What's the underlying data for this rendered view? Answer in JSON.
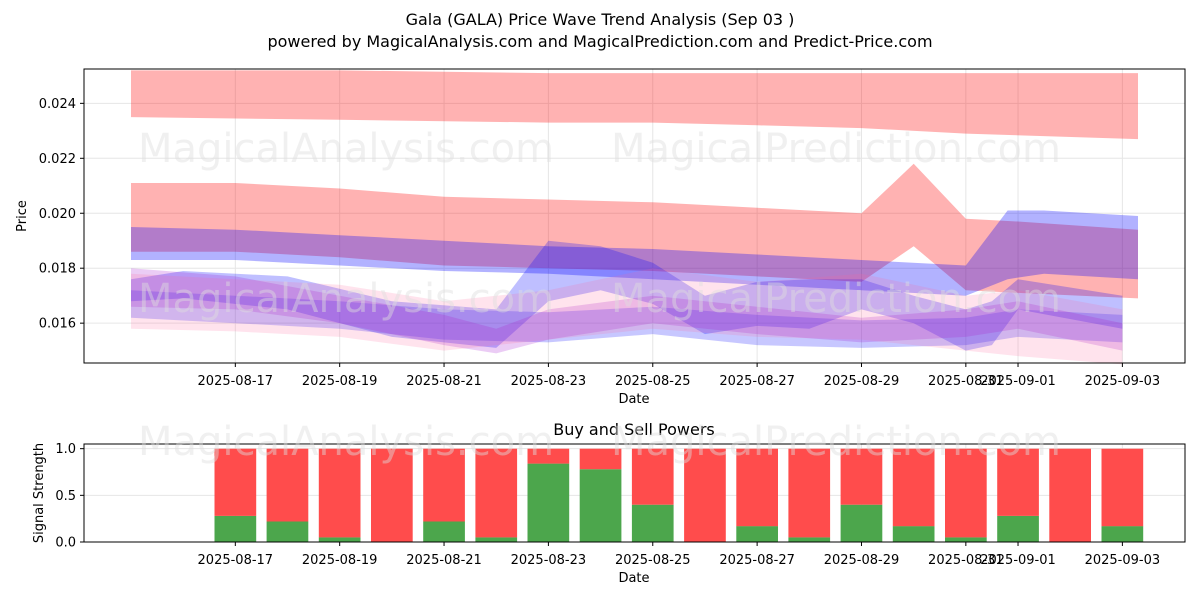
{
  "title": "Gala (GALA) Price Wave Trend Analysis (Sep 03 )",
  "subtitle": "powered by MagicalAnalysis.com and MagicalPrediction.com and Predict-Price.com",
  "watermarks": [
    "MagicalAnalysis.com",
    "MagicalPrediction.com"
  ],
  "chart_data": [
    {
      "type": "area",
      "xlabel": "Date",
      "ylabel": "Price",
      "x_ticks": [
        "2025-08-17",
        "2025-08-19",
        "2025-08-21",
        "2025-08-23",
        "2025-08-25",
        "2025-08-27",
        "2025-08-29",
        "2025-08-31",
        "2025-09-01",
        "2025-09-03"
      ],
      "x_tick_days": [
        2,
        4,
        6,
        8,
        10,
        12,
        14,
        16,
        17,
        19
      ],
      "y_ticks": [
        0.016,
        0.018,
        0.02,
        0.022,
        0.024
      ],
      "xlim": [
        "2025-08-14",
        "2025-09-04"
      ],
      "ylim": [
        0.01455,
        0.02525
      ],
      "grid": true,
      "bands": [
        {
          "color": "#ff0000",
          "opacity": 0.3,
          "x": [
            0,
            4,
            8,
            10,
            12,
            14,
            16,
            19.3
          ],
          "upper": [
            0.0252,
            0.0252,
            0.0251,
            0.0251,
            0.0251,
            0.0251,
            0.0251,
            0.0251
          ],
          "lower": [
            0.0235,
            0.0234,
            0.0233,
            0.0233,
            0.0232,
            0.0231,
            0.0229,
            0.0227
          ]
        },
        {
          "color": "#ff0000",
          "opacity": 0.3,
          "x": [
            0,
            2,
            4,
            6,
            8,
            10,
            12,
            14,
            15,
            16,
            17,
            19.3
          ],
          "upper": [
            0.0211,
            0.0211,
            0.0209,
            0.0206,
            0.0205,
            0.0204,
            0.0202,
            0.02,
            0.0218,
            0.0198,
            0.0197,
            0.0194
          ],
          "lower": [
            0.0186,
            0.0186,
            0.0184,
            0.0181,
            0.018,
            0.0179,
            0.0177,
            0.0175,
            0.0188,
            0.0172,
            0.0171,
            0.0169
          ]
        },
        {
          "color": "#0000ff",
          "opacity": 0.3,
          "x": [
            0,
            2,
            4,
            6,
            8,
            10,
            12,
            14,
            16,
            16.8,
            17.5,
            19.3
          ],
          "upper": [
            0.0195,
            0.0194,
            0.0192,
            0.019,
            0.0188,
            0.0187,
            0.0185,
            0.0183,
            0.0181,
            0.0201,
            0.0201,
            0.0199
          ],
          "lower": [
            0.0183,
            0.0183,
            0.0181,
            0.0179,
            0.0178,
            0.0176,
            0.0174,
            0.0172,
            0.017,
            0.0176,
            0.0178,
            0.0176
          ]
        },
        {
          "color": "#0000ff",
          "opacity": 0.25,
          "x": [
            0,
            1,
            3,
            5,
            7,
            8,
            9,
            10,
            11,
            12,
            13,
            14,
            15,
            16,
            16.5,
            17,
            19
          ],
          "upper": [
            0.0176,
            0.0179,
            0.0177,
            0.0168,
            0.0165,
            0.019,
            0.0188,
            0.0182,
            0.017,
            0.0175,
            0.0176,
            0.0176,
            0.017,
            0.0165,
            0.0168,
            0.0176,
            0.017
          ],
          "lower": [
            0.0168,
            0.0169,
            0.0165,
            0.0155,
            0.0151,
            0.0168,
            0.0172,
            0.0167,
            0.0156,
            0.0159,
            0.0158,
            0.0165,
            0.016,
            0.015,
            0.0152,
            0.0165,
            0.0158
          ]
        },
        {
          "color": "#0000ff",
          "opacity": 0.22,
          "x": [
            0,
            2,
            4,
            6,
            8,
            10,
            12,
            14,
            16,
            17,
            19
          ],
          "upper": [
            0.0172,
            0.017,
            0.0168,
            0.0165,
            0.0164,
            0.0166,
            0.0163,
            0.0161,
            0.0162,
            0.0165,
            0.0163
          ],
          "lower": [
            0.0162,
            0.016,
            0.0158,
            0.0154,
            0.0153,
            0.0156,
            0.0152,
            0.0151,
            0.0152,
            0.0155,
            0.0153
          ]
        },
        {
          "color": "#9900cc",
          "opacity": 0.2,
          "x": [
            0,
            2,
            4,
            6,
            7,
            8,
            10,
            12,
            14,
            16,
            17,
            19
          ],
          "upper": [
            0.018,
            0.0177,
            0.017,
            0.0163,
            0.0158,
            0.0165,
            0.017,
            0.0166,
            0.0162,
            0.0165,
            0.0168,
            0.016
          ],
          "lower": [
            0.0166,
            0.0165,
            0.016,
            0.0152,
            0.0149,
            0.0154,
            0.016,
            0.0156,
            0.0153,
            0.0155,
            0.0158,
            0.015
          ]
        },
        {
          "color": "#ff6699",
          "opacity": 0.18,
          "x": [
            0,
            2,
            4,
            6,
            8,
            10,
            12,
            14,
            16,
            17,
            19
          ],
          "upper": [
            0.0178,
            0.0176,
            0.0174,
            0.0168,
            0.0172,
            0.018,
            0.0175,
            0.0178,
            0.017,
            0.0172,
            0.0165
          ],
          "lower": [
            0.0158,
            0.0157,
            0.0155,
            0.015,
            0.0154,
            0.0158,
            0.0155,
            0.0154,
            0.015,
            0.0148,
            0.0145
          ]
        }
      ]
    },
    {
      "type": "bar",
      "stacked": true,
      "title": "Buy and Sell Powers",
      "xlabel": "Date",
      "ylabel": "Signal Strength",
      "x_ticks": [
        "2025-08-17",
        "2025-08-19",
        "2025-08-21",
        "2025-08-23",
        "2025-08-25",
        "2025-08-27",
        "2025-08-29",
        "2025-08-31",
        "2025-09-01",
        "2025-09-03"
      ],
      "x_tick_days": [
        2,
        4,
        6,
        8,
        10,
        12,
        14,
        16,
        17,
        19
      ],
      "y_ticks": [
        "0.0",
        "0.5",
        "1.0"
      ],
      "ylim": [
        0,
        1.05
      ],
      "xlim": [
        "2025-08-14",
        "2025-09-04"
      ],
      "grid": true,
      "day_index": [
        2,
        3,
        4,
        5,
        6,
        7,
        8,
        9,
        10,
        11,
        12,
        13,
        14,
        15,
        16,
        17,
        18,
        19
      ],
      "series": [
        {
          "color": "#4ca64c",
          "values": [
            0.28,
            0.22,
            0.05,
            0.0,
            0.22,
            0.05,
            0.84,
            0.78,
            0.4,
            0.0,
            0.17,
            0.05,
            0.4,
            0.17,
            0.05,
            0.28,
            0.0,
            0.17
          ]
        },
        {
          "color": "#ff4c4c",
          "values": [
            0.72,
            0.78,
            0.95,
            1.0,
            0.78,
            0.95,
            0.16,
            0.22,
            0.6,
            1.0,
            0.83,
            0.95,
            0.6,
            0.83,
            0.95,
            0.72,
            1.0,
            0.83
          ]
        }
      ]
    }
  ]
}
